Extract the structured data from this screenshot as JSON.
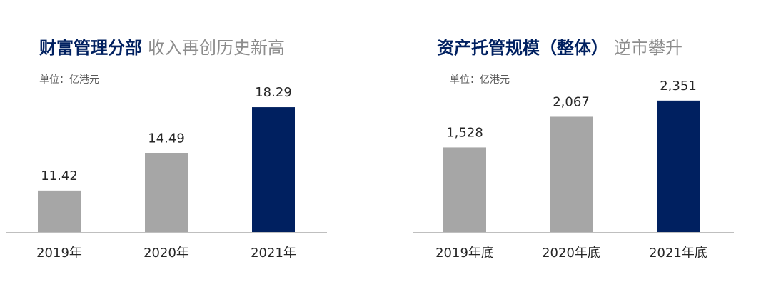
{
  "chart_data": [
    {
      "type": "bar",
      "title": "财富管理分部",
      "subtitle": "收入再创历史新高",
      "unit_label": "单位：亿港元",
      "categories": [
        "2019年",
        "2020年",
        "2021年"
      ],
      "values": [
        11.42,
        14.49,
        18.29
      ],
      "colors": [
        "#a6a6a6",
        "#a6a6a6",
        "#002060"
      ],
      "ylim": [
        8,
        20
      ]
    },
    {
      "type": "bar",
      "title": "资产托管规模（整体）",
      "subtitle": "逆市攀升",
      "unit_label": "单位：亿港元",
      "categories": [
        "2019年底",
        "2020年底",
        "2021年底"
      ],
      "values": [
        1528,
        2067,
        2351
      ],
      "value_labels": [
        "1,528",
        "2,067",
        "2,351"
      ],
      "colors": [
        "#a6a6a6",
        "#a6a6a6",
        "#002060"
      ],
      "ylim": [
        40,
        2600
      ]
    }
  ]
}
